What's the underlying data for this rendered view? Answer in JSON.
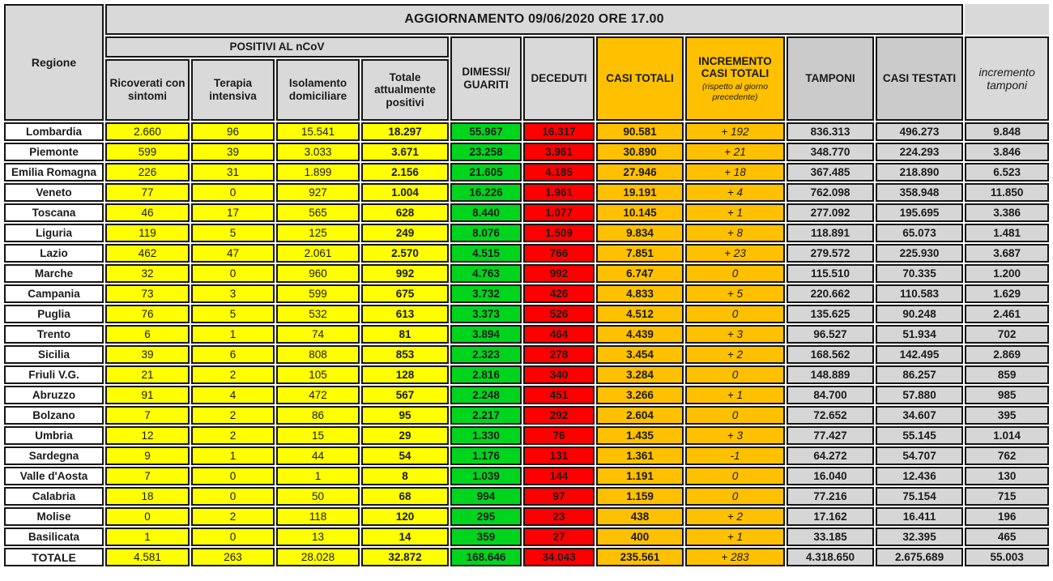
{
  "colors": {
    "yellow": "#FFFF00",
    "green": "#00D51E",
    "red": "#FF0000",
    "orange": "#FFC000",
    "gray_title": "#D9D9D9",
    "gray_col_header": "#CBCBCB",
    "gray_cell": "#D6D6D6",
    "border": "#151515",
    "text": "#1A1A1A"
  },
  "chart_data": {
    "type": "table",
    "title": "AGGIORNAMENTO 09/06/2020 ORE 17.00",
    "group_header": "POSITIVI AL nCoV",
    "incremento_note": "(rispetto al giorno precedente)",
    "columns": [
      "Regione",
      "Ricoverati con sintomi",
      "Terapia intensiva",
      "Isolamento domiciliare",
      "Totale attualmente positivi",
      "DIMESSI/ GUARITI",
      "DECEDUTI",
      "CASI TOTALI",
      "INCREMENTO CASI TOTALI",
      "TAMPONI",
      "CASI TESTATI",
      "incremento tamponi"
    ],
    "rows": [
      [
        "Lombardia",
        "2.660",
        "96",
        "15.541",
        "18.297",
        "55.967",
        "16.317",
        "90.581",
        "+ 192",
        "836.313",
        "496.273",
        "9.848"
      ],
      [
        "Piemonte",
        "599",
        "39",
        "3.033",
        "3.671",
        "23.258",
        "3.961",
        "30.890",
        "+ 21",
        "348.770",
        "224.293",
        "3.846"
      ],
      [
        "Emilia Romagna",
        "226",
        "31",
        "1.899",
        "2.156",
        "21.605",
        "4.185",
        "27.946",
        "+ 18",
        "367.485",
        "218.890",
        "6.523"
      ],
      [
        "Veneto",
        "77",
        "0",
        "927",
        "1.004",
        "16.226",
        "1.961",
        "19.191",
        "+ 4",
        "762.098",
        "358.948",
        "11.850"
      ],
      [
        "Toscana",
        "46",
        "17",
        "565",
        "628",
        "8.440",
        "1.077",
        "10.145",
        "+ 1",
        "277.092",
        "195.695",
        "3.386"
      ],
      [
        "Liguria",
        "119",
        "5",
        "125",
        "249",
        "8.076",
        "1.509",
        "9.834",
        "+ 8",
        "118.891",
        "65.073",
        "1.481"
      ],
      [
        "Lazio",
        "462",
        "47",
        "2.061",
        "2.570",
        "4.515",
        "766",
        "7.851",
        "+ 23",
        "279.572",
        "225.930",
        "3.687"
      ],
      [
        "Marche",
        "32",
        "0",
        "960",
        "992",
        "4.763",
        "992",
        "6.747",
        "0",
        "115.510",
        "70.335",
        "1.200"
      ],
      [
        "Campania",
        "73",
        "3",
        "599",
        "675",
        "3.732",
        "426",
        "4.833",
        "+ 5",
        "220.662",
        "110.583",
        "1.629"
      ],
      [
        "Puglia",
        "76",
        "5",
        "532",
        "613",
        "3.373",
        "526",
        "4.512",
        "0",
        "135.625",
        "90.248",
        "2.461"
      ],
      [
        "Trento",
        "6",
        "1",
        "74",
        "81",
        "3.894",
        "464",
        "4.439",
        "+ 3",
        "96.527",
        "51.934",
        "702"
      ],
      [
        "Sicilia",
        "39",
        "6",
        "808",
        "853",
        "2.323",
        "278",
        "3.454",
        "+ 2",
        "168.562",
        "142.495",
        "2.869"
      ],
      [
        "Friuli V.G.",
        "21",
        "2",
        "105",
        "128",
        "2.816",
        "340",
        "3.284",
        "0",
        "148.889",
        "86.257",
        "859"
      ],
      [
        "Abruzzo",
        "91",
        "4",
        "472",
        "567",
        "2.248",
        "451",
        "3.266",
        "+ 1",
        "84.700",
        "57.880",
        "985"
      ],
      [
        "Bolzano",
        "7",
        "2",
        "86",
        "95",
        "2.217",
        "292",
        "2.604",
        "0",
        "72.652",
        "34.607",
        "395"
      ],
      [
        "Umbria",
        "12",
        "2",
        "15",
        "29",
        "1.330",
        "76",
        "1.435",
        "+ 3",
        "77.427",
        "55.145",
        "1.014"
      ],
      [
        "Sardegna",
        "9",
        "1",
        "44",
        "54",
        "1.176",
        "131",
        "1.361",
        "-1",
        "64.272",
        "54.707",
        "762"
      ],
      [
        "Valle d'Aosta",
        "7",
        "0",
        "1",
        "8",
        "1.039",
        "144",
        "1.191",
        "0",
        "16.040",
        "12.436",
        "130"
      ],
      [
        "Calabria",
        "18",
        "0",
        "50",
        "68",
        "994",
        "97",
        "1.159",
        "0",
        "77.216",
        "75.154",
        "715"
      ],
      [
        "Molise",
        "0",
        "2",
        "118",
        "120",
        "295",
        "23",
        "438",
        "+ 2",
        "17.162",
        "16.411",
        "196"
      ],
      [
        "Basilicata",
        "1",
        "0",
        "13",
        "14",
        "359",
        "27",
        "400",
        "+ 1",
        "33.185",
        "32.395",
        "465"
      ]
    ],
    "total_row": [
      "TOTALE",
      "4.581",
      "263",
      "28.028",
      "32.872",
      "168.646",
      "34.043",
      "235.561",
      "+ 283",
      "4.318.650",
      "2.675.689",
      "55.003"
    ]
  }
}
